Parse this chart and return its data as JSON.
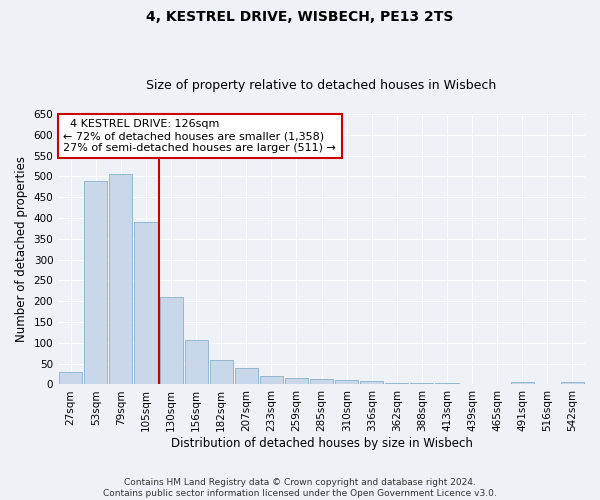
{
  "title1": "4, KESTREL DRIVE, WISBECH, PE13 2TS",
  "title2": "Size of property relative to detached houses in Wisbech",
  "xlabel": "Distribution of detached houses by size in Wisbech",
  "ylabel": "Number of detached properties",
  "categories": [
    "27sqm",
    "53sqm",
    "79sqm",
    "105sqm",
    "130sqm",
    "156sqm",
    "182sqm",
    "207sqm",
    "233sqm",
    "259sqm",
    "285sqm",
    "310sqm",
    "336sqm",
    "362sqm",
    "388sqm",
    "413sqm",
    "439sqm",
    "465sqm",
    "491sqm",
    "516sqm",
    "542sqm"
  ],
  "values": [
    30,
    490,
    505,
    390,
    210,
    106,
    58,
    40,
    20,
    15,
    12,
    10,
    8,
    4,
    4,
    4,
    2,
    2,
    5,
    2,
    6
  ],
  "bar_color": "#c8d8ea",
  "bar_edge_color": "#8ab0cc",
  "vline_color": "#cc0000",
  "annotation_text": "  4 KESTREL DRIVE: 126sqm\n← 72% of detached houses are smaller (1,358)\n27% of semi-detached houses are larger (511) →",
  "annotation_box_color": "#ffffff",
  "annotation_box_edge": "#cc0000",
  "ylim": [
    0,
    650
  ],
  "yticks": [
    0,
    50,
    100,
    150,
    200,
    250,
    300,
    350,
    400,
    450,
    500,
    550,
    600,
    650
  ],
  "footer": "Contains HM Land Registry data © Crown copyright and database right 2024.\nContains public sector information licensed under the Open Government Licence v3.0.",
  "bg_color": "#eef2f7",
  "plot_bg_color": "#eef2f7",
  "grid_color": "#ffffff",
  "title1_fontsize": 10,
  "title2_fontsize": 9,
  "xlabel_fontsize": 8.5,
  "ylabel_fontsize": 8.5,
  "tick_fontsize": 7.5,
  "annotation_fontsize": 8,
  "footer_fontsize": 6.5
}
